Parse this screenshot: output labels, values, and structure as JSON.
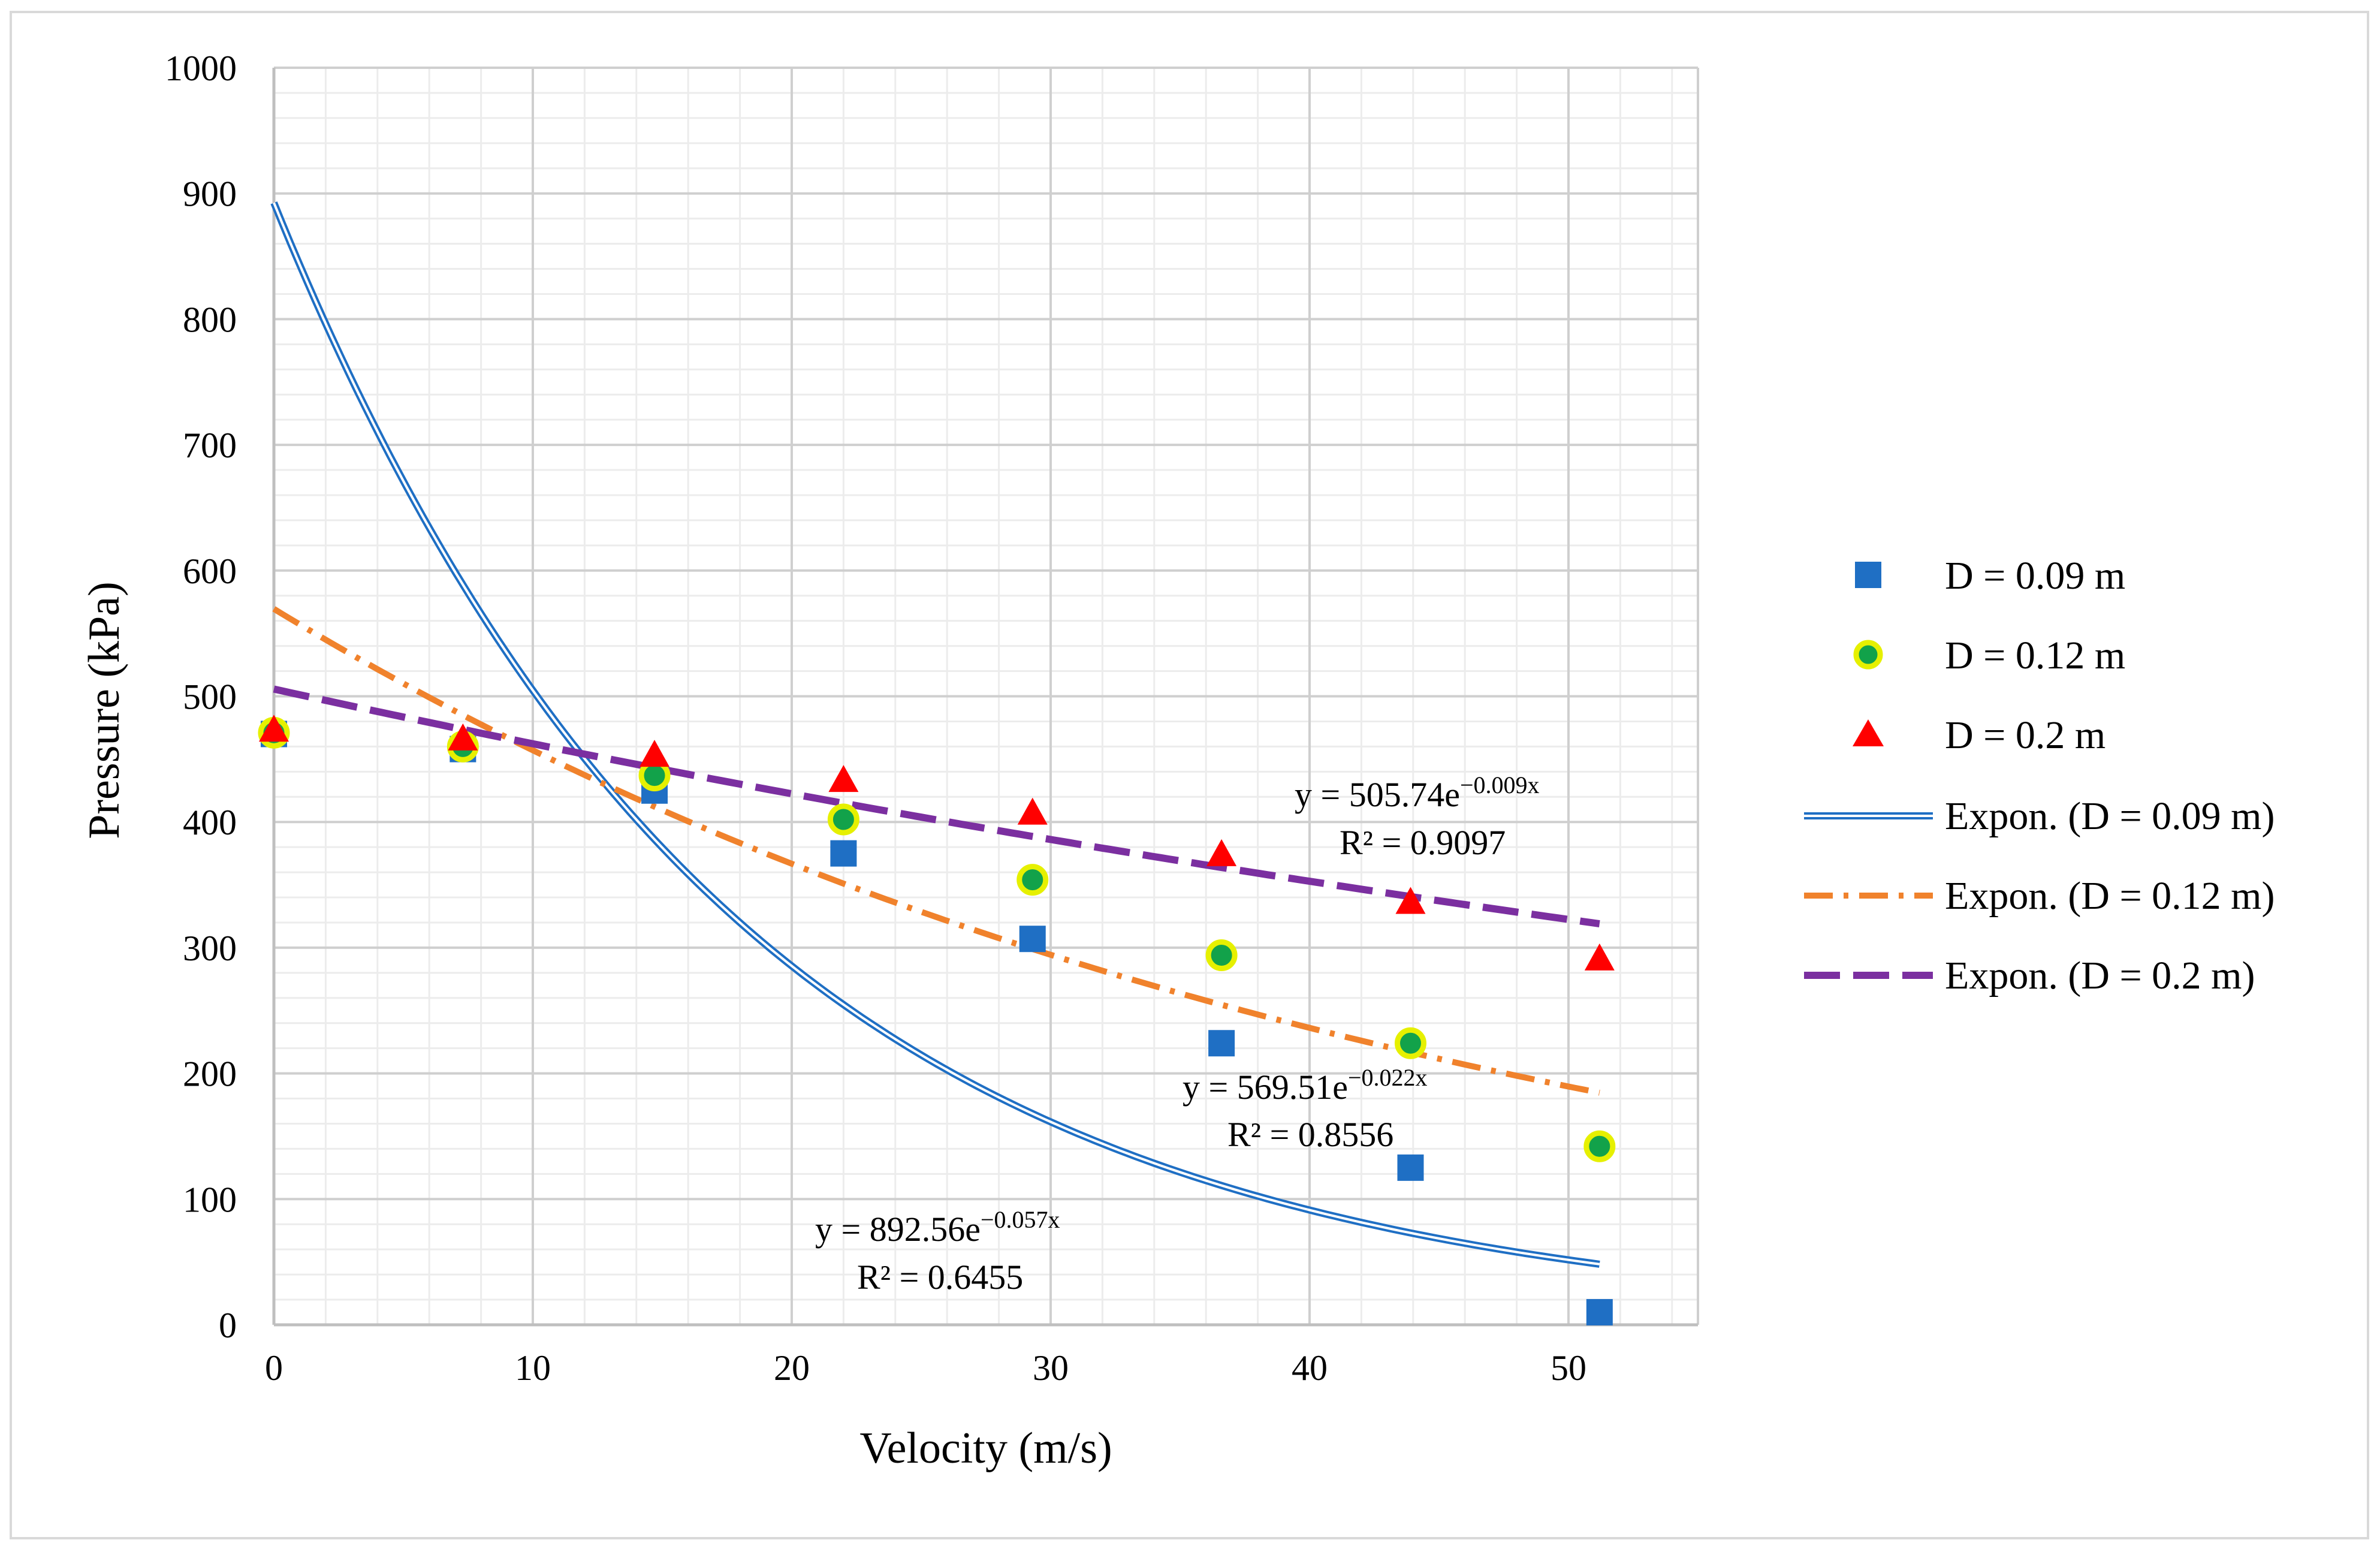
{
  "chart_data": {
    "type": "scatter",
    "title": "",
    "xlabel": "Velocity (m/s)",
    "ylabel": "Pressure (kPa)",
    "xlim": [
      0,
      55
    ],
    "ylim": [
      0,
      1000
    ],
    "x_ticks": [
      0,
      10,
      20,
      30,
      40,
      50
    ],
    "y_ticks": [
      0,
      100,
      200,
      300,
      400,
      500,
      600,
      700,
      800,
      900,
      1000
    ],
    "grid": true,
    "legend_position": "right",
    "series": [
      {
        "name": "D = 0.09 m",
        "marker": "square",
        "color": "#1f6fc4",
        "x": [
          0,
          7.3,
          14.7,
          22,
          29.3,
          36.6,
          43.9,
          51.2
        ],
        "y": [
          470,
          458,
          425,
          375,
          307,
          224,
          125,
          10
        ]
      },
      {
        "name": "D = 0.12 m",
        "marker": "circle",
        "color": "#12a24a",
        "edge_color": "#e6f000",
        "x": [
          0,
          7.3,
          14.7,
          22,
          29.3,
          36.6,
          43.9,
          51.2
        ],
        "y": [
          471,
          460,
          437,
          402,
          354,
          294,
          224,
          142
        ]
      },
      {
        "name": "D = 0.2 m",
        "marker": "triangle",
        "color": "#ff0000",
        "x": [
          0,
          7.3,
          14.7,
          22,
          29.3,
          36.6,
          43.9,
          51.2
        ],
        "y": [
          472,
          465,
          452,
          432,
          406,
          373,
          335,
          290
        ]
      }
    ],
    "trendlines": [
      {
        "name": "Expon. (D = 0.09 m)",
        "style": "double",
        "color": "#1f6fc4",
        "a": 892.56,
        "b": -0.057,
        "x_range": [
          0,
          51.2
        ],
        "equation_prefix": "y = 892.56e",
        "equation_exp": "−0.057x",
        "r2": "R² = 0.6455"
      },
      {
        "name": "Expon. (D = 0.12 m)",
        "style": "dashdot",
        "color": "#f0822c",
        "a": 569.51,
        "b": -0.022,
        "x_range": [
          0,
          51.2
        ],
        "equation_prefix": "y = 569.51e",
        "equation_exp": "−0.022x",
        "r2": "R² = 0.8556"
      },
      {
        "name": "Expon. (D = 0.2 m)",
        "style": "dash",
        "color": "#7b2fa0",
        "a": 505.74,
        "b": -0.009,
        "x_range": [
          0,
          51.2
        ],
        "equation_prefix": "y = 505.74e",
        "equation_exp": "−0.009x",
        "r2": "R² = 0.9097"
      }
    ]
  }
}
